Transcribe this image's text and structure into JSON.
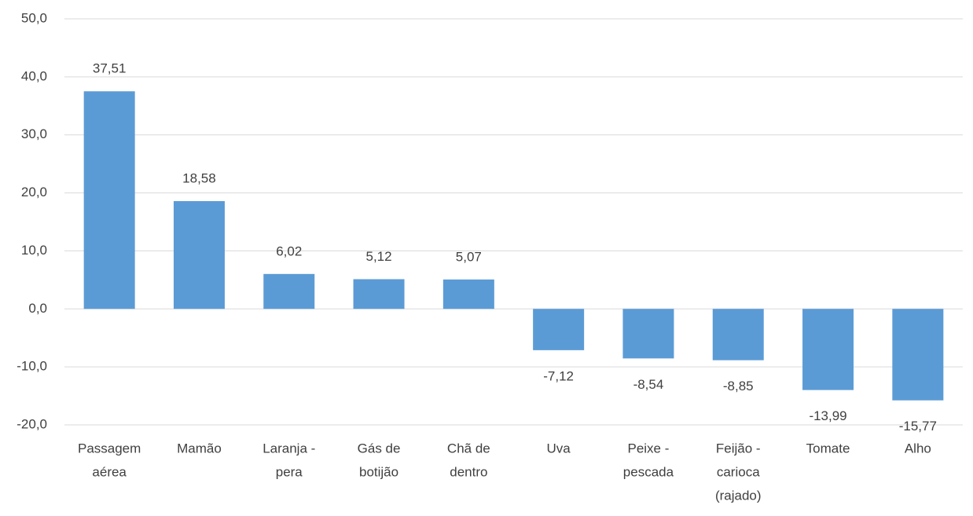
{
  "chart_data": {
    "type": "bar",
    "categories": [
      [
        "Passagem",
        "aérea"
      ],
      [
        "Mamão"
      ],
      [
        "Laranja -",
        "pera"
      ],
      [
        "Gás de",
        "botijão"
      ],
      [
        "Chã de",
        "dentro"
      ],
      [
        "Uva"
      ],
      [
        "Peixe -",
        "pescada"
      ],
      [
        "Feijão -",
        "carioca",
        "(rajado)"
      ],
      [
        "Tomate"
      ],
      [
        "Alho"
      ]
    ],
    "values": [
      37.51,
      18.58,
      6.02,
      5.12,
      5.07,
      -7.12,
      -8.54,
      -8.85,
      -13.99,
      -15.77
    ],
    "value_labels": [
      "37,51",
      "18,58",
      "6,02",
      "5,12",
      "5,07",
      "-7,12",
      "-8,54",
      "-8,85",
      "-13,99",
      "-15,77"
    ],
    "color": "#5b9bd5",
    "ylim": [
      -20,
      50
    ],
    "yticks": [
      {
        "value": -20,
        "label": "-20,0"
      },
      {
        "value": -10,
        "label": "-10,0"
      },
      {
        "value": 0,
        "label": "0,0"
      },
      {
        "value": 10,
        "label": "10,0"
      },
      {
        "value": 20,
        "label": "20,0"
      },
      {
        "value": 30,
        "label": "30,0"
      },
      {
        "value": 40,
        "label": "40,0"
      },
      {
        "value": 50,
        "label": "50,0"
      }
    ],
    "grid": true
  }
}
